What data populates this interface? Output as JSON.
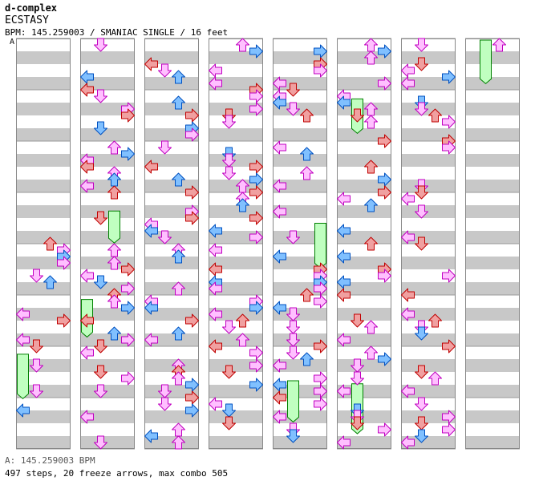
{
  "song": {
    "artist": "d-complex",
    "title": "ECSTASY",
    "info_line": "BPM: 145.259003 / SMANIAC SINGLE / 16 feet",
    "bpm_marker": "A"
  },
  "footer": {
    "bpm_line": "A: 145.259003 BPM",
    "stats_line": "497 steps, 20 freeze arrows, max combo 505"
  },
  "colors": {
    "stripe_gray": "#c8c8c8",
    "border": "#888888",
    "quarter_note_red": "#f0a0a0",
    "quarter_note_red_stroke": "#c00000",
    "eighth_note_blue": "#80c0ff",
    "eighth_note_blue_stroke": "#0050c0",
    "sixteenth_note_pink": "#ffc0ff",
    "sixteenth_note_pink_stroke": "#c000c0",
    "freeze_green": "#c0ffc0",
    "freeze_green_stroke": "#008000"
  },
  "chart_data": {
    "type": "step-chart",
    "mode": "SMANIAC SINGLE",
    "difficulty_feet": 16,
    "bpm": 145.259003,
    "steps": 497,
    "freeze_arrows": 20,
    "max_combo": 505,
    "lanes": [
      "left",
      "down",
      "up",
      "right"
    ],
    "columns": 8,
    "measures_per_column": 8
  }
}
